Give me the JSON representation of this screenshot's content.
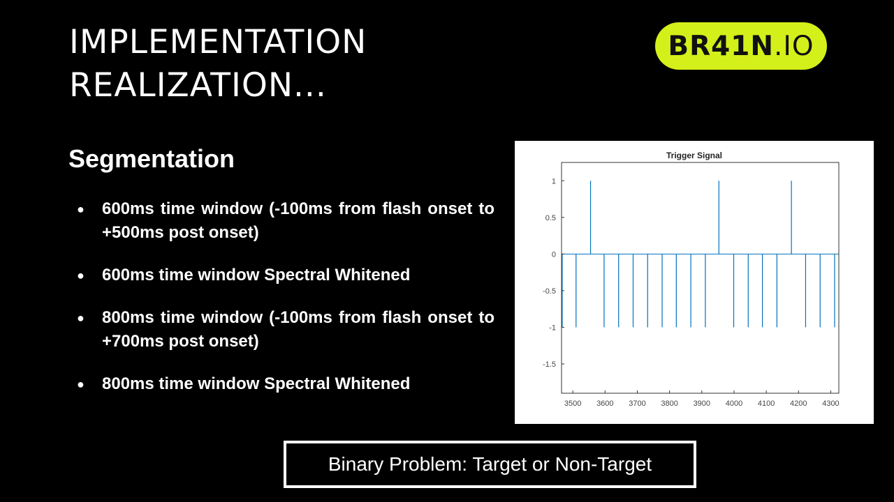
{
  "slide": {
    "title_lines": [
      "IMPLEMENTATION",
      "REALIZATION..."
    ],
    "logo": {
      "text_bold": "BR41N",
      "text_light": ".IO",
      "color": "#d4f01a"
    },
    "section_heading": "Segmentation",
    "bullets": [
      "600ms time window (-100ms from flash onset to +500ms post onset)",
      "600ms time window Spectral Whitened",
      "800ms time window (-100ms from flash onset to +700ms post onset)",
      "800ms time window Spectral Whitened"
    ],
    "caption": "Binary Problem: Target or Non-Target"
  },
  "chart_data": {
    "type": "line",
    "title": "Trigger Signal",
    "xlabel": "",
    "ylabel": "",
    "xlim": [
      3465,
      4325
    ],
    "ylim": [
      -1.9,
      1.25
    ],
    "xticks": [
      3500,
      3600,
      3700,
      3800,
      3900,
      4000,
      4100,
      4200,
      4300
    ],
    "yticks": [
      -1.5,
      -1,
      -0.5,
      0,
      0.5,
      1
    ],
    "ytick_labels": [
      "-1.5",
      "-1",
      "-0.5",
      "0",
      "0.5",
      "1"
    ],
    "grid": false,
    "color": "#0072bd",
    "series": [
      {
        "spikes": [
          {
            "x": 3467,
            "y": -1
          },
          {
            "x": 3510,
            "y": -1
          },
          {
            "x": 3555,
            "y": 1
          },
          {
            "x": 3597,
            "y": -1
          },
          {
            "x": 3642,
            "y": -1
          },
          {
            "x": 3687,
            "y": -1
          },
          {
            "x": 3732,
            "y": -1
          },
          {
            "x": 3777,
            "y": -1
          },
          {
            "x": 3821,
            "y": -1
          },
          {
            "x": 3866,
            "y": -1
          },
          {
            "x": 3911,
            "y": -1
          },
          {
            "x": 3953,
            "y": 1
          },
          {
            "x": 3999,
            "y": -1
          },
          {
            "x": 4044,
            "y": -1
          },
          {
            "x": 4088,
            "y": -1
          },
          {
            "x": 4133,
            "y": -1
          },
          {
            "x": 4178,
            "y": 1
          },
          {
            "x": 4222,
            "y": -1
          },
          {
            "x": 4267,
            "y": -1
          },
          {
            "x": 4312,
            "y": -1
          }
        ]
      }
    ]
  }
}
